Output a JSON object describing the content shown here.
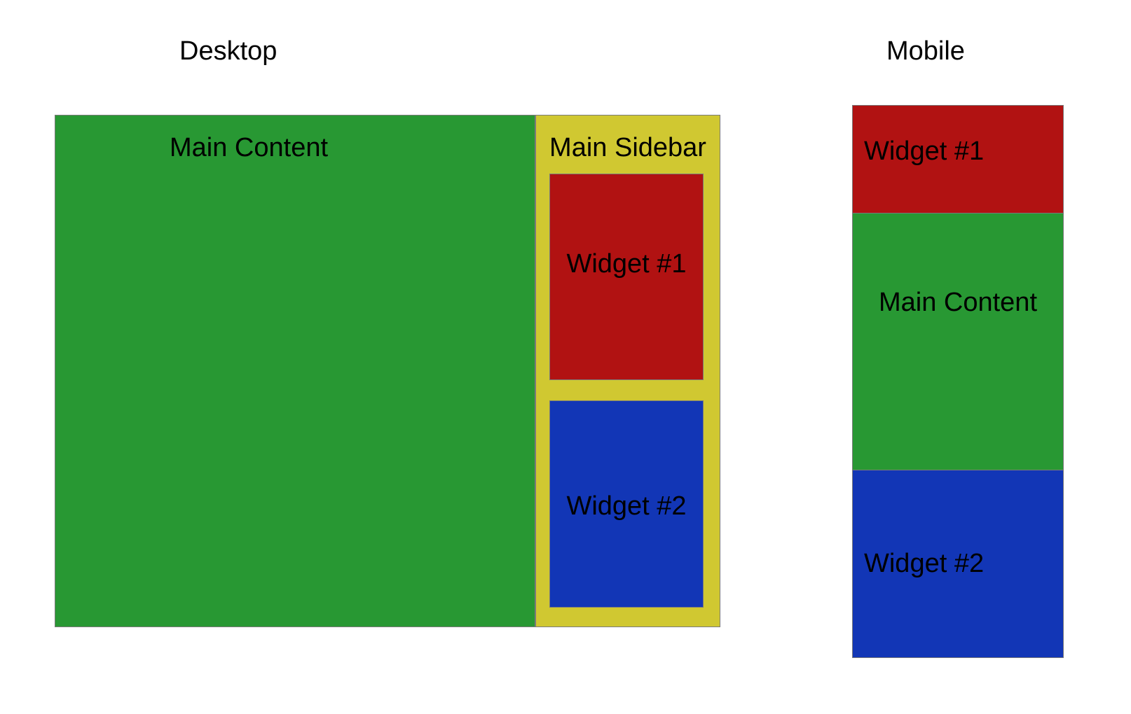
{
  "desktop": {
    "heading": "Desktop",
    "main_content": {
      "label": "Main Content",
      "color": "#289833"
    },
    "sidebar": {
      "label": "Main Sidebar",
      "color": "#D0C831"
    },
    "widget1": {
      "label": "Widget #1",
      "color": "#B11212"
    },
    "widget2": {
      "label": "Widget #2",
      "color": "#1236B6"
    }
  },
  "mobile": {
    "heading": "Mobile",
    "widget1": {
      "label": "Widget #1",
      "color": "#B11212"
    },
    "main_content": {
      "label": "Main Content",
      "color": "#289833"
    },
    "widget2": {
      "label": "Widget #2",
      "color": "#1236B6"
    }
  }
}
